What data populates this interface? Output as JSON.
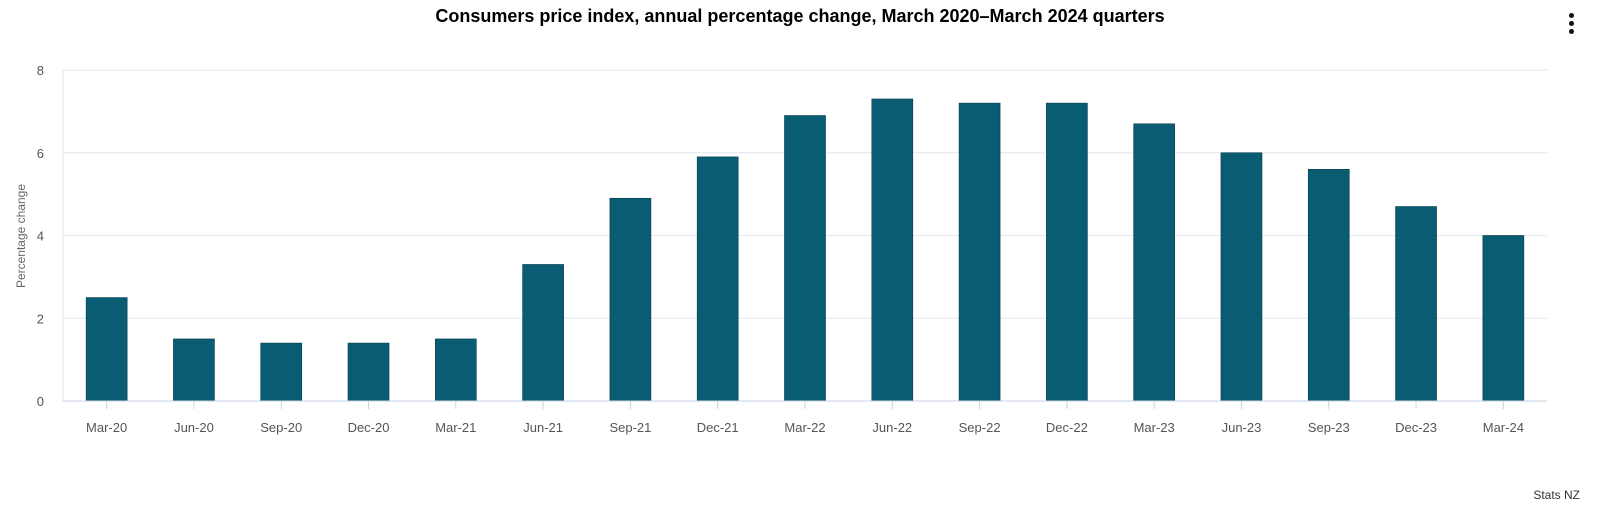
{
  "header": {
    "menu_icon": "vertical-ellipsis-icon"
  },
  "footer": {
    "credit": "Stats NZ"
  },
  "chart_data": {
    "type": "bar",
    "title": "Consumers price index, annual percentage change, March 2020–March 2024 quarters",
    "xlabel": "",
    "ylabel": "Percentage change",
    "ylim": [
      0,
      8
    ],
    "yticks": [
      0,
      2,
      4,
      6,
      8
    ],
    "grid": true,
    "legend": "none",
    "bar_color": "#0a5c72",
    "categories": [
      "Mar-20",
      "Jun-20",
      "Sep-20",
      "Dec-20",
      "Mar-21",
      "Jun-21",
      "Sep-21",
      "Dec-21",
      "Mar-22",
      "Jun-22",
      "Sep-22",
      "Dec-22",
      "Mar-23",
      "Jun-23",
      "Sep-23",
      "Dec-23",
      "Mar-24"
    ],
    "values": [
      2.5,
      1.5,
      1.4,
      1.4,
      1.5,
      3.3,
      4.9,
      5.9,
      6.9,
      7.3,
      7.2,
      7.2,
      6.7,
      6.0,
      5.6,
      4.7,
      4.0
    ]
  }
}
